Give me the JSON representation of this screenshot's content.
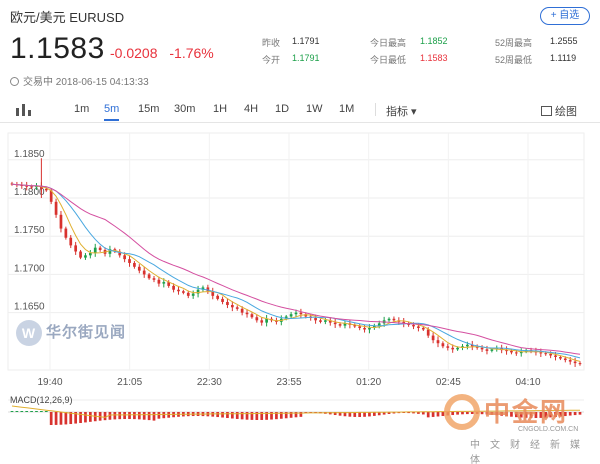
{
  "header": {
    "title": "欧元/美元  EURUSD",
    "watch_button": "+ 自选",
    "price": "1.1583",
    "change": "-0.0208",
    "change_pct": "-1.76%",
    "status_time": "交易中 2018-06-15 04:13:33"
  },
  "stats": {
    "prev_close_label": "昨收",
    "prev_close": "1.1791",
    "open_label": "今开",
    "open": "1.1791",
    "high_label": "今日最高",
    "high": "1.1852",
    "low_label": "今日最低",
    "low": "1.1583",
    "w52_high_label": "52周最高",
    "w52_high": "1.2555",
    "w52_low_label": "52周最低",
    "w52_low": "1.1119"
  },
  "toolbar": {
    "intervals": [
      "1m",
      "5m",
      "15m",
      "30m",
      "1H",
      "4H",
      "1D",
      "1W",
      "1M"
    ],
    "active_interval": "5m",
    "indicator_label": "指标 ▾",
    "draw_label": "绘图"
  },
  "watermarks": {
    "wscn": "华尔街见闻",
    "cngold_big": "中金网",
    "cngold_url": "CNGOLD.COM.CN",
    "cngold_cn": "中文财经新媒体"
  },
  "macd": {
    "label": "MACD(12,26,9)"
  },
  "colors": {
    "up": "#1da04a",
    "down": "#d8322e",
    "accent": "#2f6fd6",
    "ma_pink": "#d44fa0",
    "ma_blue": "#4aa8e0",
    "ma_yellow": "#e0b030"
  },
  "chart_data": {
    "type": "candlestick",
    "y_ticks": [
      1.185,
      1.18,
      1.175,
      1.17,
      1.165
    ],
    "y_tick_labels": [
      "1.1850",
      "1.1800",
      "1.1750",
      "1.1700",
      "1.1650"
    ],
    "ylim": [
      1.1575,
      1.1885
    ],
    "x_tick_labels": [
      "19:40",
      "21:05",
      "22:30",
      "23:55",
      "01:20",
      "02:45",
      "04:10"
    ],
    "close_path": [
      1.1818,
      1.1817,
      1.1816,
      1.1815,
      1.1814,
      1.1816,
      1.1812,
      1.181,
      1.1795,
      1.1778,
      1.176,
      1.1748,
      1.1738,
      1.173,
      1.1722,
      1.1725,
      1.1728,
      1.1735,
      1.1732,
      1.1727,
      1.1733,
      1.173,
      1.1725,
      1.172,
      1.1715,
      1.171,
      1.1705,
      1.17,
      1.1695,
      1.1693,
      1.1688,
      1.169,
      1.1685,
      1.168,
      1.1678,
      1.1676,
      1.1672,
      1.1675,
      1.168,
      1.1683,
      1.1678,
      1.1672,
      1.1668,
      1.1664,
      1.166,
      1.1657,
      1.1655,
      1.165,
      1.1648,
      1.1644,
      1.164,
      1.1637,
      1.1642,
      1.164,
      1.1638,
      1.1642,
      1.1645,
      1.1648,
      1.165,
      1.1648,
      1.1645,
      1.1643,
      1.164,
      1.1638,
      1.164,
      1.1637,
      1.1635,
      1.1633,
      1.1636,
      1.1634,
      1.1632,
      1.163,
      1.1628,
      1.163,
      1.1633,
      1.1636,
      1.164,
      1.1642,
      1.164,
      1.1638,
      1.1636,
      1.1634,
      1.1632,
      1.163,
      1.1628,
      1.162,
      1.1614,
      1.161,
      1.1606,
      1.1604,
      1.1602,
      1.1604,
      1.1606,
      1.1608,
      1.1606,
      1.1604,
      1.1602,
      1.16,
      1.1602,
      1.1604,
      1.1601,
      1.16,
      1.1598,
      1.1597,
      1.1599,
      1.1601,
      1.16,
      1.1598,
      1.1597,
      1.1596,
      1.1594,
      1.1592,
      1.159,
      1.1588,
      1.1586,
      1.1584,
      1.1583
    ]
  }
}
